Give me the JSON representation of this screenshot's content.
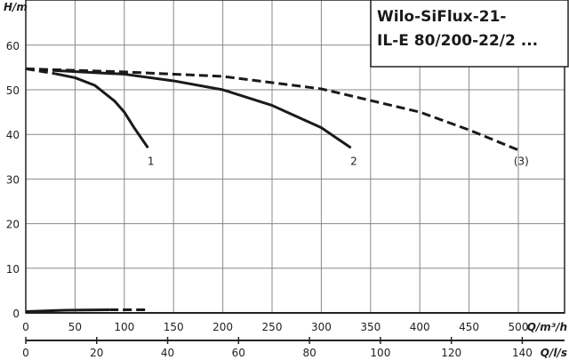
{
  "chart_data": {
    "type": "line",
    "title": "Wilo-SiFlux-21-IL-E 80/200-22/2 ...",
    "title_lines": [
      "Wilo-SiFlux-21-",
      "IL-E 80/200-22/2 ..."
    ],
    "ylabel": "H/m",
    "xlabel": "Q/m³/h",
    "x2label": "Q/l/s",
    "xlim": [
      0,
      550
    ],
    "ylim": [
      0,
      70
    ],
    "xticks": [
      0,
      50,
      100,
      150,
      200,
      250,
      300,
      350,
      400,
      450,
      500
    ],
    "yticks": [
      0,
      10,
      20,
      30,
      40,
      50,
      60
    ],
    "x2ticks": [
      0,
      20,
      40,
      60,
      80,
      100,
      120,
      140
    ],
    "grid": true,
    "series": [
      {
        "name": "1",
        "style": "solid",
        "dashed_until": 30,
        "x": [
          0,
          30,
          50,
          70,
          90,
          100,
          110,
          124
        ],
        "y": [
          54.7,
          53.6,
          52.7,
          51,
          47.5,
          45,
          41.5,
          37
        ]
      },
      {
        "name": "2",
        "style": "solid",
        "dashed_until": 30,
        "x": [
          0,
          30,
          100,
          150,
          200,
          250,
          300,
          330
        ],
        "y": [
          54.7,
          54.3,
          53.5,
          52,
          50,
          46.5,
          41.5,
          37
        ]
      },
      {
        "name": "(3)",
        "style": "dashed",
        "x": [
          0,
          100,
          200,
          300,
          400,
          450,
          500
        ],
        "y": [
          54.7,
          54,
          53,
          50.2,
          45,
          41,
          36.5
        ]
      },
      {
        "name": "low-solid",
        "style": "solid",
        "x": [
          0,
          40,
          85
        ],
        "y": [
          0.3,
          0.6,
          0.7
        ]
      },
      {
        "name": "low-dashed",
        "style": "dashed",
        "x": [
          85,
          125
        ],
        "y": [
          0.7,
          0.7
        ]
      }
    ],
    "labels": [
      {
        "text": "1",
        "x": 127,
        "y": 34
      },
      {
        "text": "2",
        "x": 333,
        "y": 34
      },
      {
        "text": "(3)",
        "x": 503,
        "y": 34
      }
    ]
  }
}
